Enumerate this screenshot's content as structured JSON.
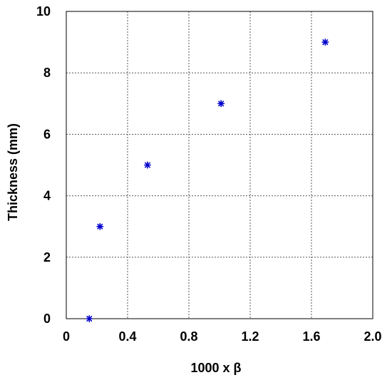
{
  "chart_data": {
    "type": "scatter",
    "title": "",
    "xlabel": "1000 x β",
    "ylabel": "Thickness (mm)",
    "xlim": [
      0,
      2.0
    ],
    "ylim": [
      0,
      10
    ],
    "x_ticks": [
      0,
      0.4,
      0.8,
      1.2,
      1.6,
      2.0
    ],
    "x_tick_labels": [
      "0",
      "0.4",
      "0.8",
      "1.2",
      "1.6",
      "2.0"
    ],
    "y_ticks": [
      0,
      2,
      4,
      6,
      8,
      10
    ],
    "y_tick_labels": [
      "0",
      "2",
      "4",
      "6",
      "8",
      "10"
    ],
    "grid": true,
    "legend": "none",
    "series": [
      {
        "marker": "asterisk",
        "color": "#0000cc",
        "points": [
          {
            "x": 0.15,
            "y": 0
          },
          {
            "x": 0.22,
            "y": 3
          },
          {
            "x": 0.53,
            "y": 5
          },
          {
            "x": 1.01,
            "y": 7
          },
          {
            "x": 1.69,
            "y": 9
          }
        ]
      }
    ]
  }
}
